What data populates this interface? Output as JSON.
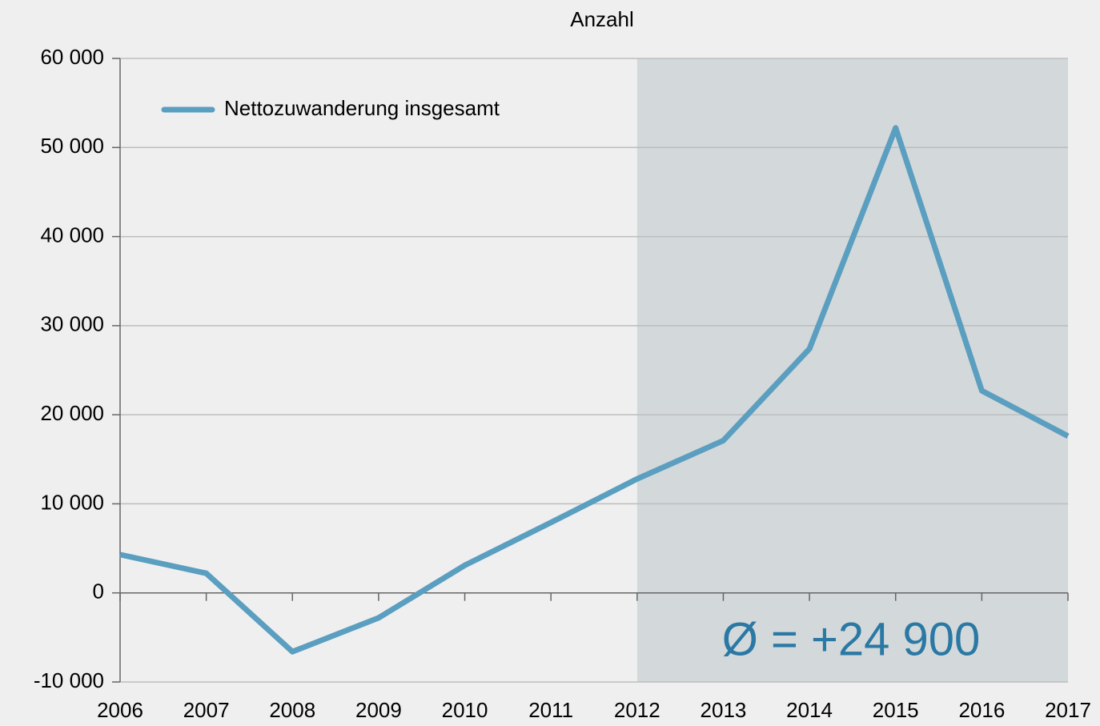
{
  "chart_data": {
    "type": "line",
    "title": "Anzahl",
    "x": [
      2006,
      2007,
      2008,
      2009,
      2010,
      2011,
      2012,
      2013,
      2014,
      2015,
      2016,
      2017
    ],
    "series": [
      {
        "name": "Nettozuwanderung insgesamt",
        "color": "#5a9ec0",
        "values": [
          4300,
          2200,
          -6600,
          -2800,
          3100,
          7900,
          12800,
          17100,
          27400,
          52200,
          22700,
          17600
        ]
      }
    ],
    "xlim": [
      2006,
      2017
    ],
    "xticks": [
      2006,
      2007,
      2008,
      2009,
      2010,
      2011,
      2012,
      2013,
      2014,
      2015,
      2016,
      2017
    ],
    "ylim": [
      -10000,
      60000
    ],
    "yticks": [
      {
        "value": -10000,
        "label": "-10 000"
      },
      0,
      {
        "value": 10000,
        "label": "10 000"
      },
      {
        "value": 20000,
        "label": "20 000"
      },
      {
        "value": 30000,
        "label": "30 000"
      },
      {
        "value": 40000,
        "label": "40 000"
      },
      {
        "value": 50000,
        "label": "50 000"
      },
      {
        "value": 60000,
        "label": "60 000"
      }
    ],
    "grid": true,
    "legend": "top-left",
    "highlight": {
      "x": [
        2012,
        2017
      ],
      "color": "#d3d8da",
      "label": "Ø = +24 900",
      "label_color": "#2a78a4"
    }
  }
}
